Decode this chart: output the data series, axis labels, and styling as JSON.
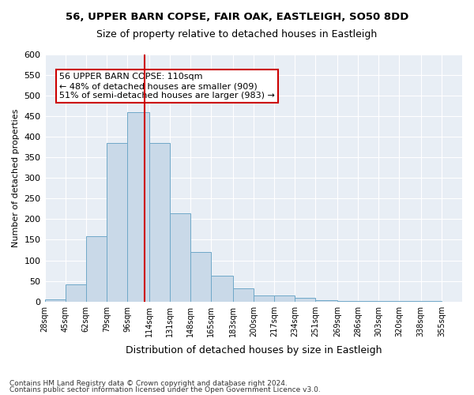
{
  "title1": "56, UPPER BARN COPSE, FAIR OAK, EASTLEIGH, SO50 8DD",
  "title2": "Size of property relative to detached houses in Eastleigh",
  "xlabel": "Distribution of detached houses by size in Eastleigh",
  "ylabel": "Number of detached properties",
  "footnote1": "Contains HM Land Registry data © Crown copyright and database right 2024.",
  "footnote2": "Contains public sector information licensed under the Open Government Licence v3.0.",
  "annotation_line1": "56 UPPER BARN COPSE: 110sqm",
  "annotation_line2": "← 48% of detached houses are smaller (909)",
  "annotation_line3": "51% of semi-detached houses are larger (983) →",
  "property_size": 110,
  "bar_color": "#c9d9e8",
  "bar_edge_color": "#6fa8c8",
  "vline_color": "#cc0000",
  "bg_color": "#e8eef5",
  "bins": [
    28,
    45,
    62,
    79,
    96,
    114,
    131,
    148,
    165,
    183,
    200,
    217,
    234,
    251,
    269,
    286,
    303,
    320,
    338,
    355,
    372
  ],
  "counts": [
    5,
    42,
    158,
    385,
    460,
    385,
    215,
    120,
    62,
    32,
    14,
    14,
    8,
    4,
    2,
    1,
    1,
    1,
    1,
    0
  ],
  "ylim": [
    0,
    600
  ],
  "yticks": [
    0,
    50,
    100,
    150,
    200,
    250,
    300,
    350,
    400,
    450,
    500,
    550,
    600
  ]
}
